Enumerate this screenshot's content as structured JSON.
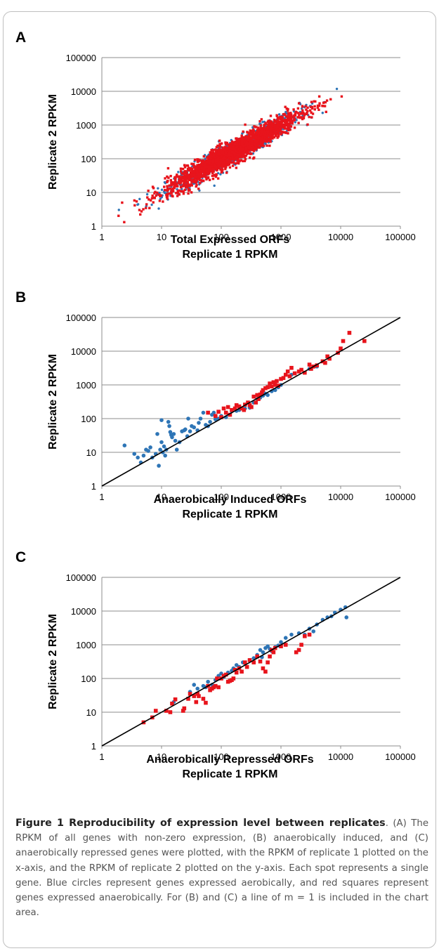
{
  "chart_data": [
    {
      "type": "scatter",
      "panel_label": "A",
      "xlabel": "Total Expressed ORFs",
      "xlabel2": "Replicate 1 RPKM",
      "ylabel": "Replicate 2 RPKM",
      "xscale": "log",
      "yscale": "log",
      "xlim": [
        1,
        100000
      ],
      "ylim": [
        1,
        100000
      ],
      "x_ticks": [
        "1",
        "10",
        "100",
        "1000",
        "10000",
        "100000"
      ],
      "y_ticks": [
        "1",
        "10",
        "100",
        "1000",
        "10000",
        "100000"
      ],
      "grid": "horizontal",
      "identity_line": false,
      "n_points_approx": 3000,
      "series": [
        {
          "marker": "circle",
          "color": "#2e75b6"
        },
        {
          "marker": "square",
          "color": "#e8141c"
        }
      ]
    },
    {
      "type": "scatter",
      "panel_label": "B",
      "xlabel": "Anaerobically Induced ORFs",
      "xlabel2": "Replicate 1 RPKM",
      "ylabel": "Replicate 2 RPKM",
      "xscale": "log",
      "yscale": "log",
      "xlim": [
        1,
        100000
      ],
      "ylim": [
        1,
        100000
      ],
      "x_ticks": [
        "1",
        "10",
        "100",
        "1000",
        "10000",
        "100000"
      ],
      "y_ticks": [
        "1",
        "10",
        "100",
        "1000",
        "10000",
        "100000"
      ],
      "grid": "horizontal",
      "identity_line": true,
      "series": [
        {
          "marker": "circle",
          "color": "#2e75b6",
          "points": [
            [
              2.4,
              16
            ],
            [
              3.5,
              9
            ],
            [
              4,
              7
            ],
            [
              4.5,
              5
            ],
            [
              5,
              8
            ],
            [
              5.5,
              12
            ],
            [
              6,
              11
            ],
            [
              6.5,
              14
            ],
            [
              7,
              7
            ],
            [
              8,
              9
            ],
            [
              8.5,
              35
            ],
            [
              9,
              4
            ],
            [
              9.5,
              12
            ],
            [
              10,
              20
            ],
            [
              10,
              90
            ],
            [
              10.5,
              10
            ],
            [
              11,
              15
            ],
            [
              11.5,
              8
            ],
            [
              12,
              12
            ],
            [
              13,
              80
            ],
            [
              13.5,
              60
            ],
            [
              14,
              40
            ],
            [
              14.5,
              33
            ],
            [
              15,
              28
            ],
            [
              16,
              35
            ],
            [
              17,
              22
            ],
            [
              18,
              12
            ],
            [
              20,
              20
            ],
            [
              22,
              42
            ],
            [
              24,
              45
            ],
            [
              25,
              48
            ],
            [
              27,
              30
            ],
            [
              28,
              100
            ],
            [
              30,
              42
            ],
            [
              32,
              60
            ],
            [
              35,
              55
            ],
            [
              40,
              45
            ],
            [
              42,
              75
            ],
            [
              45,
              100
            ],
            [
              50,
              150
            ],
            [
              55,
              65
            ],
            [
              60,
              60
            ],
            [
              65,
              80
            ],
            [
              70,
              130
            ],
            [
              75,
              150
            ],
            [
              80,
              95
            ],
            [
              90,
              100
            ],
            [
              100,
              120
            ],
            [
              120,
              110
            ],
            [
              150,
              165
            ],
            [
              180,
              170
            ],
            [
              200,
              180
            ],
            [
              250,
              200
            ],
            [
              300,
              210
            ],
            [
              350,
              300
            ],
            [
              400,
              380
            ],
            [
              450,
              420
            ],
            [
              500,
              480
            ],
            [
              550,
              550
            ],
            [
              600,
              500
            ],
            [
              700,
              650
            ],
            [
              800,
              700
            ],
            [
              900,
              850
            ],
            [
              1000,
              1000
            ],
            [
              1500,
              2000
            ],
            [
              3000,
              3000
            ],
            [
              4000,
              3500
            ]
          ]
        },
        {
          "marker": "square",
          "color": "#e8141c",
          "points": [
            [
              60,
              150
            ],
            [
              80,
              120
            ],
            [
              90,
              160
            ],
            [
              100,
              110
            ],
            [
              110,
              200
            ],
            [
              120,
              150
            ],
            [
              130,
              220
            ],
            [
              140,
              130
            ],
            [
              150,
              180
            ],
            [
              170,
              200
            ],
            [
              180,
              250
            ],
            [
              200,
              230
            ],
            [
              220,
              200
            ],
            [
              240,
              180
            ],
            [
              250,
              260
            ],
            [
              280,
              300
            ],
            [
              300,
              250
            ],
            [
              320,
              220
            ],
            [
              350,
              450
            ],
            [
              380,
              300
            ],
            [
              400,
              500
            ],
            [
              420,
              380
            ],
            [
              450,
              520
            ],
            [
              480,
              600
            ],
            [
              500,
              700
            ],
            [
              550,
              800
            ],
            [
              600,
              850
            ],
            [
              650,
              1100
            ],
            [
              700,
              900
            ],
            [
              750,
              1200
            ],
            [
              800,
              1000
            ],
            [
              850,
              1300
            ],
            [
              900,
              950
            ],
            [
              1000,
              1500
            ],
            [
              1100,
              1600
            ],
            [
              1200,
              2000
            ],
            [
              1300,
              2500
            ],
            [
              1400,
              1800
            ],
            [
              1500,
              3200
            ],
            [
              1700,
              2200
            ],
            [
              2000,
              2500
            ],
            [
              2200,
              2800
            ],
            [
              2500,
              2300
            ],
            [
              3000,
              4000
            ],
            [
              3200,
              3000
            ],
            [
              3500,
              3500
            ],
            [
              4000,
              3800
            ],
            [
              5000,
              5000
            ],
            [
              5500,
              4500
            ],
            [
              6000,
              7000
            ],
            [
              6500,
              6000
            ],
            [
              9000,
              9000
            ],
            [
              10000,
              12000
            ],
            [
              11000,
              20000
            ],
            [
              14000,
              35000
            ],
            [
              25000,
              20000
            ]
          ]
        }
      ]
    },
    {
      "type": "scatter",
      "panel_label": "C",
      "xlabel": "Anaerobically Repressed ORFs",
      "xlabel2": "Replicate 1 RPKM",
      "ylabel": "Replicate 2 RPKM",
      "xscale": "log",
      "yscale": "log",
      "xlim": [
        1,
        100000
      ],
      "ylim": [
        1,
        100000
      ],
      "x_ticks": [
        "1",
        "10",
        "100",
        "1000",
        "10000",
        "100000"
      ],
      "y_ticks": [
        "1",
        "10",
        "100",
        "1000",
        "10000",
        "100000"
      ],
      "grid": "horizontal",
      "identity_line": true,
      "series": [
        {
          "marker": "circle",
          "color": "#2e75b6",
          "points": [
            [
              16,
              20
            ],
            [
              30,
              40
            ],
            [
              35,
              65
            ],
            [
              40,
              50
            ],
            [
              50,
              60
            ],
            [
              55,
              55
            ],
            [
              60,
              80
            ],
            [
              70,
              65
            ],
            [
              80,
              90
            ],
            [
              90,
              120
            ],
            [
              100,
              140
            ],
            [
              110,
              110
            ],
            [
              130,
              150
            ],
            [
              150,
              170
            ],
            [
              160,
              200
            ],
            [
              180,
              250
            ],
            [
              200,
              220
            ],
            [
              230,
              300
            ],
            [
              250,
              280
            ],
            [
              300,
              350
            ],
            [
              350,
              400
            ],
            [
              400,
              500
            ],
            [
              450,
              700
            ],
            [
              480,
              430
            ],
            [
              500,
              600
            ],
            [
              550,
              800
            ],
            [
              600,
              900
            ],
            [
              650,
              750
            ],
            [
              700,
              650
            ],
            [
              800,
              850
            ],
            [
              900,
              950
            ],
            [
              1000,
              1200
            ],
            [
              1200,
              1600
            ],
            [
              1500,
              2000
            ],
            [
              2000,
              2200
            ],
            [
              2500,
              2000
            ],
            [
              3000,
              3000
            ],
            [
              3500,
              2500
            ],
            [
              4000,
              4000
            ],
            [
              5000,
              5500
            ],
            [
              6000,
              6500
            ],
            [
              7000,
              7000
            ],
            [
              8000,
              9000
            ],
            [
              10000,
              11000
            ],
            [
              12000,
              13000
            ],
            [
              12500,
              6500
            ]
          ]
        },
        {
          "marker": "square",
          "color": "#e8141c",
          "points": [
            [
              5,
              5
            ],
            [
              7,
              7
            ],
            [
              8,
              11
            ],
            [
              12,
              11
            ],
            [
              14,
              10
            ],
            [
              15,
              18
            ],
            [
              17,
              24
            ],
            [
              23,
              11
            ],
            [
              24,
              13
            ],
            [
              28,
              25
            ],
            [
              30,
              35
            ],
            [
              35,
              30
            ],
            [
              38,
              20
            ],
            [
              40,
              35
            ],
            [
              42,
              30
            ],
            [
              50,
              25
            ],
            [
              55,
              19
            ],
            [
              60,
              60
            ],
            [
              65,
              45
            ],
            [
              70,
              50
            ],
            [
              75,
              55
            ],
            [
              80,
              60
            ],
            [
              85,
              100
            ],
            [
              90,
              55
            ],
            [
              100,
              100
            ],
            [
              110,
              120
            ],
            [
              120,
              130
            ],
            [
              130,
              80
            ],
            [
              140,
              85
            ],
            [
              150,
              90
            ],
            [
              160,
              100
            ],
            [
              170,
              180
            ],
            [
              180,
              150
            ],
            [
              200,
              200
            ],
            [
              220,
              160
            ],
            [
              250,
              300
            ],
            [
              270,
              220
            ],
            [
              300,
              350
            ],
            [
              350,
              300
            ],
            [
              400,
              450
            ],
            [
              450,
              320
            ],
            [
              500,
              200
            ],
            [
              550,
              160
            ],
            [
              600,
              300
            ],
            [
              650,
              450
            ],
            [
              700,
              700
            ],
            [
              750,
              600
            ],
            [
              800,
              800
            ],
            [
              1000,
              900
            ],
            [
              1200,
              1000
            ],
            [
              1800,
              600
            ],
            [
              2000,
              700
            ],
            [
              2200,
              1000
            ],
            [
              2500,
              1800
            ],
            [
              3000,
              2000
            ]
          ]
        }
      ]
    }
  ],
  "caption": {
    "title": "Figure 1 Reproducibility of expression level between replicates",
    "text": ". (A) The RPKM of all genes with non-zero expression, (B) anaerobically induced, and (C) anaerobically repressed genes were plotted, with the RPKM of replicate 1 plotted on the x-axis, and the RPKM of replicate 2 plotted on the y-axis. Each spot represents a single gene. Blue circles represent genes expressed aerobically, and red squares represent genes expressed anaerobically. For (B) and (C) a line of m = 1 is included in the chart area."
  }
}
